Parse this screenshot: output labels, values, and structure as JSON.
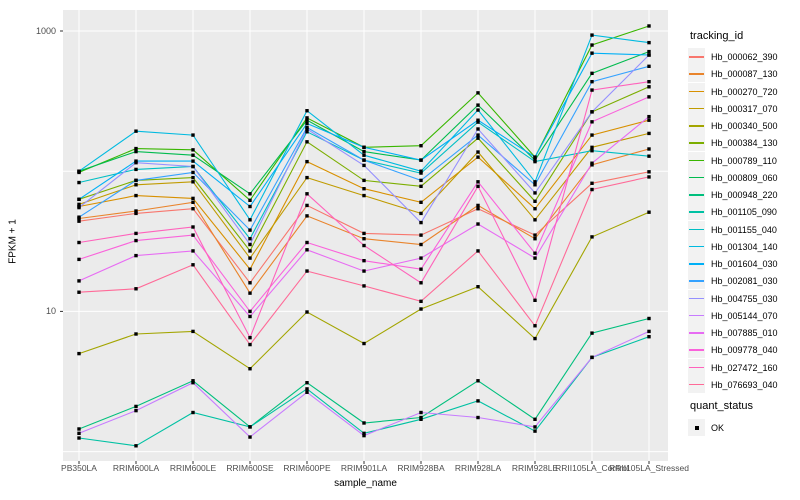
{
  "chart_data": {
    "type": "line",
    "title": "",
    "xlabel": "sample_name",
    "ylabel": "FPKM + 1",
    "y_scale": "log10",
    "y_tick_labels": [
      {
        "label": "1000",
        "value": 1000
      },
      {
        "label": "10",
        "value": 10
      }
    ],
    "y_gridline_values": [
      1,
      10,
      100,
      1000
    ],
    "ylim_log": [
      1,
      1200
    ],
    "grid": true,
    "panel_bg": "#EBEBEB",
    "gridline_color": "#FFFFFF",
    "point_color": "#000000",
    "categories": [
      "PB350LA",
      "RRIM600LA",
      "RRIM600LE",
      "RRIM600SE",
      "RRIM600PE",
      "RRIM901LA",
      "RRIM928BA",
      "RRIM928LA",
      "RRIM928LE",
      "RRII105LA_Control",
      "RRII105LA_Stressed"
    ],
    "series": [
      {
        "name": "Hb_000062_390",
        "color": "#F8766D",
        "values": [
          44,
          50,
          54,
          16,
          57,
          36,
          35,
          54,
          35,
          82,
          99
        ]
      },
      {
        "name": "Hb_000087_130",
        "color": "#E9842C",
        "values": [
          46,
          52,
          60,
          13.5,
          48,
          33,
          30,
          57,
          33,
          111,
          144
        ]
      },
      {
        "name": "Hb_000270_720",
        "color": "#D89000",
        "values": [
          56,
          67,
          64,
          20,
          117,
          75,
          60,
          126,
          54,
          181,
          231
        ]
      },
      {
        "name": "Hb_000317_070",
        "color": "#C09B00",
        "values": [
          58,
          80,
          84,
          24,
          90,
          67,
          50,
          137,
          45,
          148,
          186
        ]
      },
      {
        "name": "Hb_000340_500",
        "color": "#A3A500",
        "values": [
          5.0,
          6.9,
          7.2,
          3.9,
          9.9,
          5.9,
          10.4,
          15,
          6.4,
          34,
          51
        ]
      },
      {
        "name": "Hb_000384_130",
        "color": "#7CAE00",
        "values": [
          63,
          86,
          90,
          27,
          162,
          86,
          78,
          172,
          61,
          265,
          400
        ]
      },
      {
        "name": "Hb_000789_110",
        "color": "#39B600",
        "values": [
          98,
          145,
          142,
          62,
          240,
          148,
          152,
          362,
          126,
          794,
          1086
        ]
      },
      {
        "name": "Hb_000809_060",
        "color": "#00BB4E",
        "values": [
          100,
          138,
          130,
          69,
          231,
          138,
          120,
          296,
          120,
          499,
          713
        ]
      },
      {
        "name": "Hb_000948_220",
        "color": "#00BF7D",
        "values": [
          1.45,
          2.1,
          3.2,
          1.5,
          3.1,
          1.6,
          1.75,
          3.2,
          1.7,
          7.0,
          8.9
        ]
      },
      {
        "name": "Hb_001105_090",
        "color": "#00C1A3",
        "values": [
          1.25,
          1.1,
          1.9,
          1.5,
          2.8,
          1.35,
          1.7,
          2.3,
          1.4,
          4.7,
          6.6
        ]
      },
      {
        "name": "Hb_001155_040",
        "color": "#00BFC4",
        "values": [
          83,
          103,
          108,
          33,
          191,
          120,
          97,
          224,
          117,
          140,
          128
        ]
      },
      {
        "name": "Hb_001304_140",
        "color": "#00BAE0",
        "values": [
          100,
          193,
          181,
          45,
          270,
          130,
          100,
          273,
          84,
          935,
          826
        ]
      },
      {
        "name": "Hb_001604_030",
        "color": "#00B0F6",
        "values": [
          63,
          118,
          118,
          56,
          219,
          148,
          120,
          231,
          126,
          695,
          674
        ]
      },
      {
        "name": "Hb_002081_030",
        "color": "#35A2FF",
        "values": [
          47,
          86,
          98,
          38,
          205,
          120,
          86,
          181,
          80,
          435,
          560
        ]
      },
      {
        "name": "Hb_004755_030",
        "color": "#9590FF",
        "values": [
          55,
          115,
          108,
          30,
          200,
          110,
          43,
          200,
          70,
          265,
          674
        ]
      },
      {
        "name": "Hb_005144_070",
        "color": "#C77CFF",
        "values": [
          1.35,
          1.96,
          3.1,
          1.27,
          2.65,
          1.3,
          1.9,
          1.75,
          1.5,
          4.7,
          7.2
        ]
      },
      {
        "name": "Hb_007885_010",
        "color": "#E76BF3",
        "values": [
          16.5,
          25,
          27,
          9.2,
          27.5,
          19.4,
          24,
          42,
          24,
          114,
          245
        ]
      },
      {
        "name": "Hb_009778_040",
        "color": "#FA62DB",
        "values": [
          23.5,
          32,
          35,
          10,
          31,
          23,
          20,
          84,
          26,
          225,
          339
        ]
      },
      {
        "name": "Hb_027472_160",
        "color": "#FF62BC",
        "values": [
          31,
          36,
          40,
          6.5,
          69,
          29.5,
          16,
          78,
          12,
          379,
          435
        ]
      },
      {
        "name": "Hb_076693_040",
        "color": "#FF6A98",
        "values": [
          13.7,
          14.5,
          21.5,
          5.8,
          19.4,
          15.2,
          11.8,
          27,
          7.9,
          74,
          91
        ]
      }
    ],
    "legend": {
      "position": "right",
      "tracking_title": "tracking_id",
      "quant_title": "quant_status",
      "quant_items": [
        {
          "label": "OK"
        }
      ]
    }
  }
}
